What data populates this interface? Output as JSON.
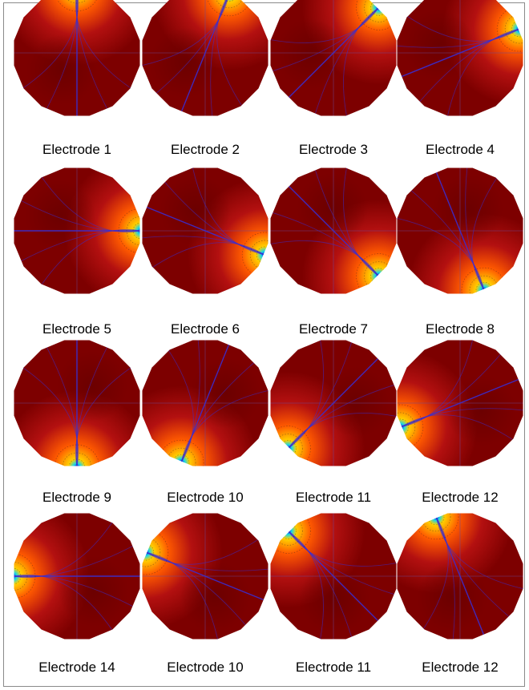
{
  "colors": {
    "background": "#ffffff",
    "frame": "#8a8a8a",
    "field_dark": "#7d0000",
    "field_mid": "#b31010",
    "field_orange": "#ff5a00",
    "field_yellow": "#ffd000",
    "field_cyan": "#18d8e8",
    "field_blue": "#0000d8",
    "streamline": "#3a2ccf"
  },
  "panels": [
    {
      "label": "Electrode 1",
      "electrode_angle_deg": 90
    },
    {
      "label": "Electrode 2",
      "electrode_angle_deg": 68
    },
    {
      "label": "Electrode 3",
      "electrode_angle_deg": 45
    },
    {
      "label": "Electrode 4",
      "electrode_angle_deg": 22
    },
    {
      "label": "Electrode 5",
      "electrode_angle_deg": 0
    },
    {
      "label": "Electrode 6",
      "electrode_angle_deg": -22
    },
    {
      "label": "Electrode 7",
      "electrode_angle_deg": -45
    },
    {
      "label": "Electrode 8",
      "electrode_angle_deg": -68
    },
    {
      "label": "Electrode 9",
      "electrode_angle_deg": -90
    },
    {
      "label": "Electrode 10",
      "electrode_angle_deg": -112
    },
    {
      "label": "Electrode 11",
      "electrode_angle_deg": -135
    },
    {
      "label": "Electrode 12",
      "electrode_angle_deg": -158
    },
    {
      "label": "Electrode 14",
      "electrode_angle_deg": 180
    },
    {
      "label": "Electrode 10",
      "electrode_angle_deg": 158
    },
    {
      "label": "Electrode 11",
      "electrode_angle_deg": 135
    },
    {
      "label": "Electrode 12",
      "electrode_angle_deg": 112
    }
  ]
}
